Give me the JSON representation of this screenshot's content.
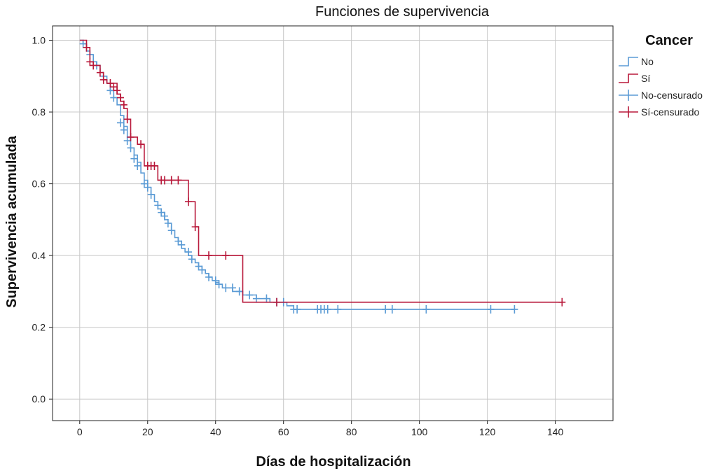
{
  "chart_data": {
    "type": "line",
    "title": "Funciones de supervivencia",
    "xlabel": "Días de hospitalización",
    "ylabel": "Supervivencia acumulada",
    "xlim": [
      -8,
      157
    ],
    "ylim": [
      -0.06,
      1.04
    ],
    "x_ticks": [
      0,
      20,
      40,
      60,
      80,
      100,
      120,
      140
    ],
    "x_tick_labels": [
      "0",
      "20",
      "40",
      "60",
      "80",
      "100",
      "120",
      "140"
    ],
    "y_ticks": [
      0.0,
      0.2,
      0.4,
      0.6,
      0.8,
      1.0
    ],
    "y_tick_labels": [
      "0.0",
      "0.2",
      "0.4",
      "0.6",
      "0.8",
      "1.0"
    ],
    "grid": true,
    "legend": {
      "title": "Cancer",
      "placement": "right",
      "entries": [
        {
          "label": "No",
          "kind": "step",
          "color": "#5b9bd5"
        },
        {
          "label": "Sí",
          "kind": "step",
          "color": "#b8183a"
        },
        {
          "label": "No-censurado",
          "kind": "censor",
          "color": "#5b9bd5"
        },
        {
          "label": "Sí-censurado",
          "kind": "censor",
          "color": "#b8183a"
        }
      ]
    },
    "series": [
      {
        "name": "No",
        "color": "#5b9bd5",
        "steps": [
          [
            0,
            1.0
          ],
          [
            1,
            0.99
          ],
          [
            2,
            0.97
          ],
          [
            3,
            0.96
          ],
          [
            4,
            0.94
          ],
          [
            5,
            0.93
          ],
          [
            6,
            0.91
          ],
          [
            7,
            0.9
          ],
          [
            8,
            0.88
          ],
          [
            9,
            0.86
          ],
          [
            10,
            0.84
          ],
          [
            11,
            0.82
          ],
          [
            12,
            0.79
          ],
          [
            13,
            0.76
          ],
          [
            14,
            0.73
          ],
          [
            15,
            0.7
          ],
          [
            16,
            0.68
          ],
          [
            17,
            0.66
          ],
          [
            18,
            0.63
          ],
          [
            19,
            0.61
          ],
          [
            20,
            0.59
          ],
          [
            21,
            0.57
          ],
          [
            22,
            0.55
          ],
          [
            23,
            0.53
          ],
          [
            24,
            0.52
          ],
          [
            25,
            0.5
          ],
          [
            26,
            0.49
          ],
          [
            27,
            0.47
          ],
          [
            28,
            0.45
          ],
          [
            29,
            0.44
          ],
          [
            30,
            0.42
          ],
          [
            31,
            0.41
          ],
          [
            32,
            0.4
          ],
          [
            33,
            0.39
          ],
          [
            34,
            0.38
          ],
          [
            35,
            0.37
          ],
          [
            36,
            0.36
          ],
          [
            37,
            0.35
          ],
          [
            38,
            0.34
          ],
          [
            39,
            0.33
          ],
          [
            40,
            0.325
          ],
          [
            41,
            0.32
          ],
          [
            42,
            0.31
          ],
          [
            45,
            0.3
          ],
          [
            48,
            0.29
          ],
          [
            52,
            0.28
          ],
          [
            56,
            0.27
          ],
          [
            61,
            0.26
          ],
          [
            63,
            0.25
          ],
          [
            128,
            0.25
          ]
        ],
        "censored": [
          [
            1,
            0.99
          ],
          [
            3,
            0.96
          ],
          [
            5,
            0.93
          ],
          [
            7,
            0.9
          ],
          [
            9,
            0.86
          ],
          [
            10,
            0.84
          ],
          [
            12,
            0.77
          ],
          [
            13,
            0.75
          ],
          [
            14,
            0.72
          ],
          [
            15,
            0.7
          ],
          [
            16,
            0.67
          ],
          [
            17,
            0.65
          ],
          [
            19,
            0.6
          ],
          [
            20,
            0.59
          ],
          [
            21,
            0.57
          ],
          [
            23,
            0.54
          ],
          [
            24,
            0.52
          ],
          [
            25,
            0.51
          ],
          [
            26,
            0.49
          ],
          [
            27,
            0.47
          ],
          [
            29,
            0.44
          ],
          [
            30,
            0.43
          ],
          [
            32,
            0.41
          ],
          [
            33,
            0.39
          ],
          [
            35,
            0.37
          ],
          [
            36,
            0.36
          ],
          [
            38,
            0.34
          ],
          [
            40,
            0.33
          ],
          [
            41,
            0.32
          ],
          [
            43,
            0.31
          ],
          [
            45,
            0.31
          ],
          [
            47,
            0.3
          ],
          [
            50,
            0.29
          ],
          [
            52,
            0.28
          ],
          [
            55,
            0.28
          ],
          [
            58,
            0.27
          ],
          [
            60,
            0.27
          ],
          [
            63,
            0.25
          ],
          [
            64,
            0.25
          ],
          [
            70,
            0.25
          ],
          [
            71,
            0.25
          ],
          [
            72,
            0.25
          ],
          [
            73,
            0.25
          ],
          [
            76,
            0.25
          ],
          [
            90,
            0.25
          ],
          [
            92,
            0.25
          ],
          [
            102,
            0.25
          ],
          [
            121,
            0.25
          ],
          [
            128,
            0.25
          ]
        ]
      },
      {
        "name": "Sí",
        "color": "#b8183a",
        "steps": [
          [
            0,
            1.0
          ],
          [
            2,
            0.98
          ],
          [
            3,
            0.94
          ],
          [
            4,
            0.93
          ],
          [
            6,
            0.91
          ],
          [
            7,
            0.89
          ],
          [
            8,
            0.88
          ],
          [
            11,
            0.85
          ],
          [
            12,
            0.83
          ],
          [
            13,
            0.81
          ],
          [
            14,
            0.78
          ],
          [
            15,
            0.73
          ],
          [
            17,
            0.71
          ],
          [
            19,
            0.65
          ],
          [
            23,
            0.61
          ],
          [
            32,
            0.55
          ],
          [
            34,
            0.48
          ],
          [
            35,
            0.4
          ],
          [
            48,
            0.27
          ],
          [
            142,
            0.27
          ]
        ],
        "censored": [
          [
            2,
            0.98
          ],
          [
            3,
            0.94
          ],
          [
            4,
            0.93
          ],
          [
            6,
            0.91
          ],
          [
            7,
            0.89
          ],
          [
            9,
            0.88
          ],
          [
            10,
            0.87
          ],
          [
            11,
            0.86
          ],
          [
            12,
            0.84
          ],
          [
            13,
            0.82
          ],
          [
            14,
            0.78
          ],
          [
            15,
            0.73
          ],
          [
            18,
            0.71
          ],
          [
            20,
            0.65
          ],
          [
            21,
            0.65
          ],
          [
            22,
            0.65
          ],
          [
            24,
            0.61
          ],
          [
            25,
            0.61
          ],
          [
            27,
            0.61
          ],
          [
            29,
            0.61
          ],
          [
            32,
            0.55
          ],
          [
            34,
            0.48
          ],
          [
            38,
            0.4
          ],
          [
            43,
            0.4
          ],
          [
            58,
            0.27
          ],
          [
            142,
            0.27
          ]
        ]
      }
    ]
  }
}
